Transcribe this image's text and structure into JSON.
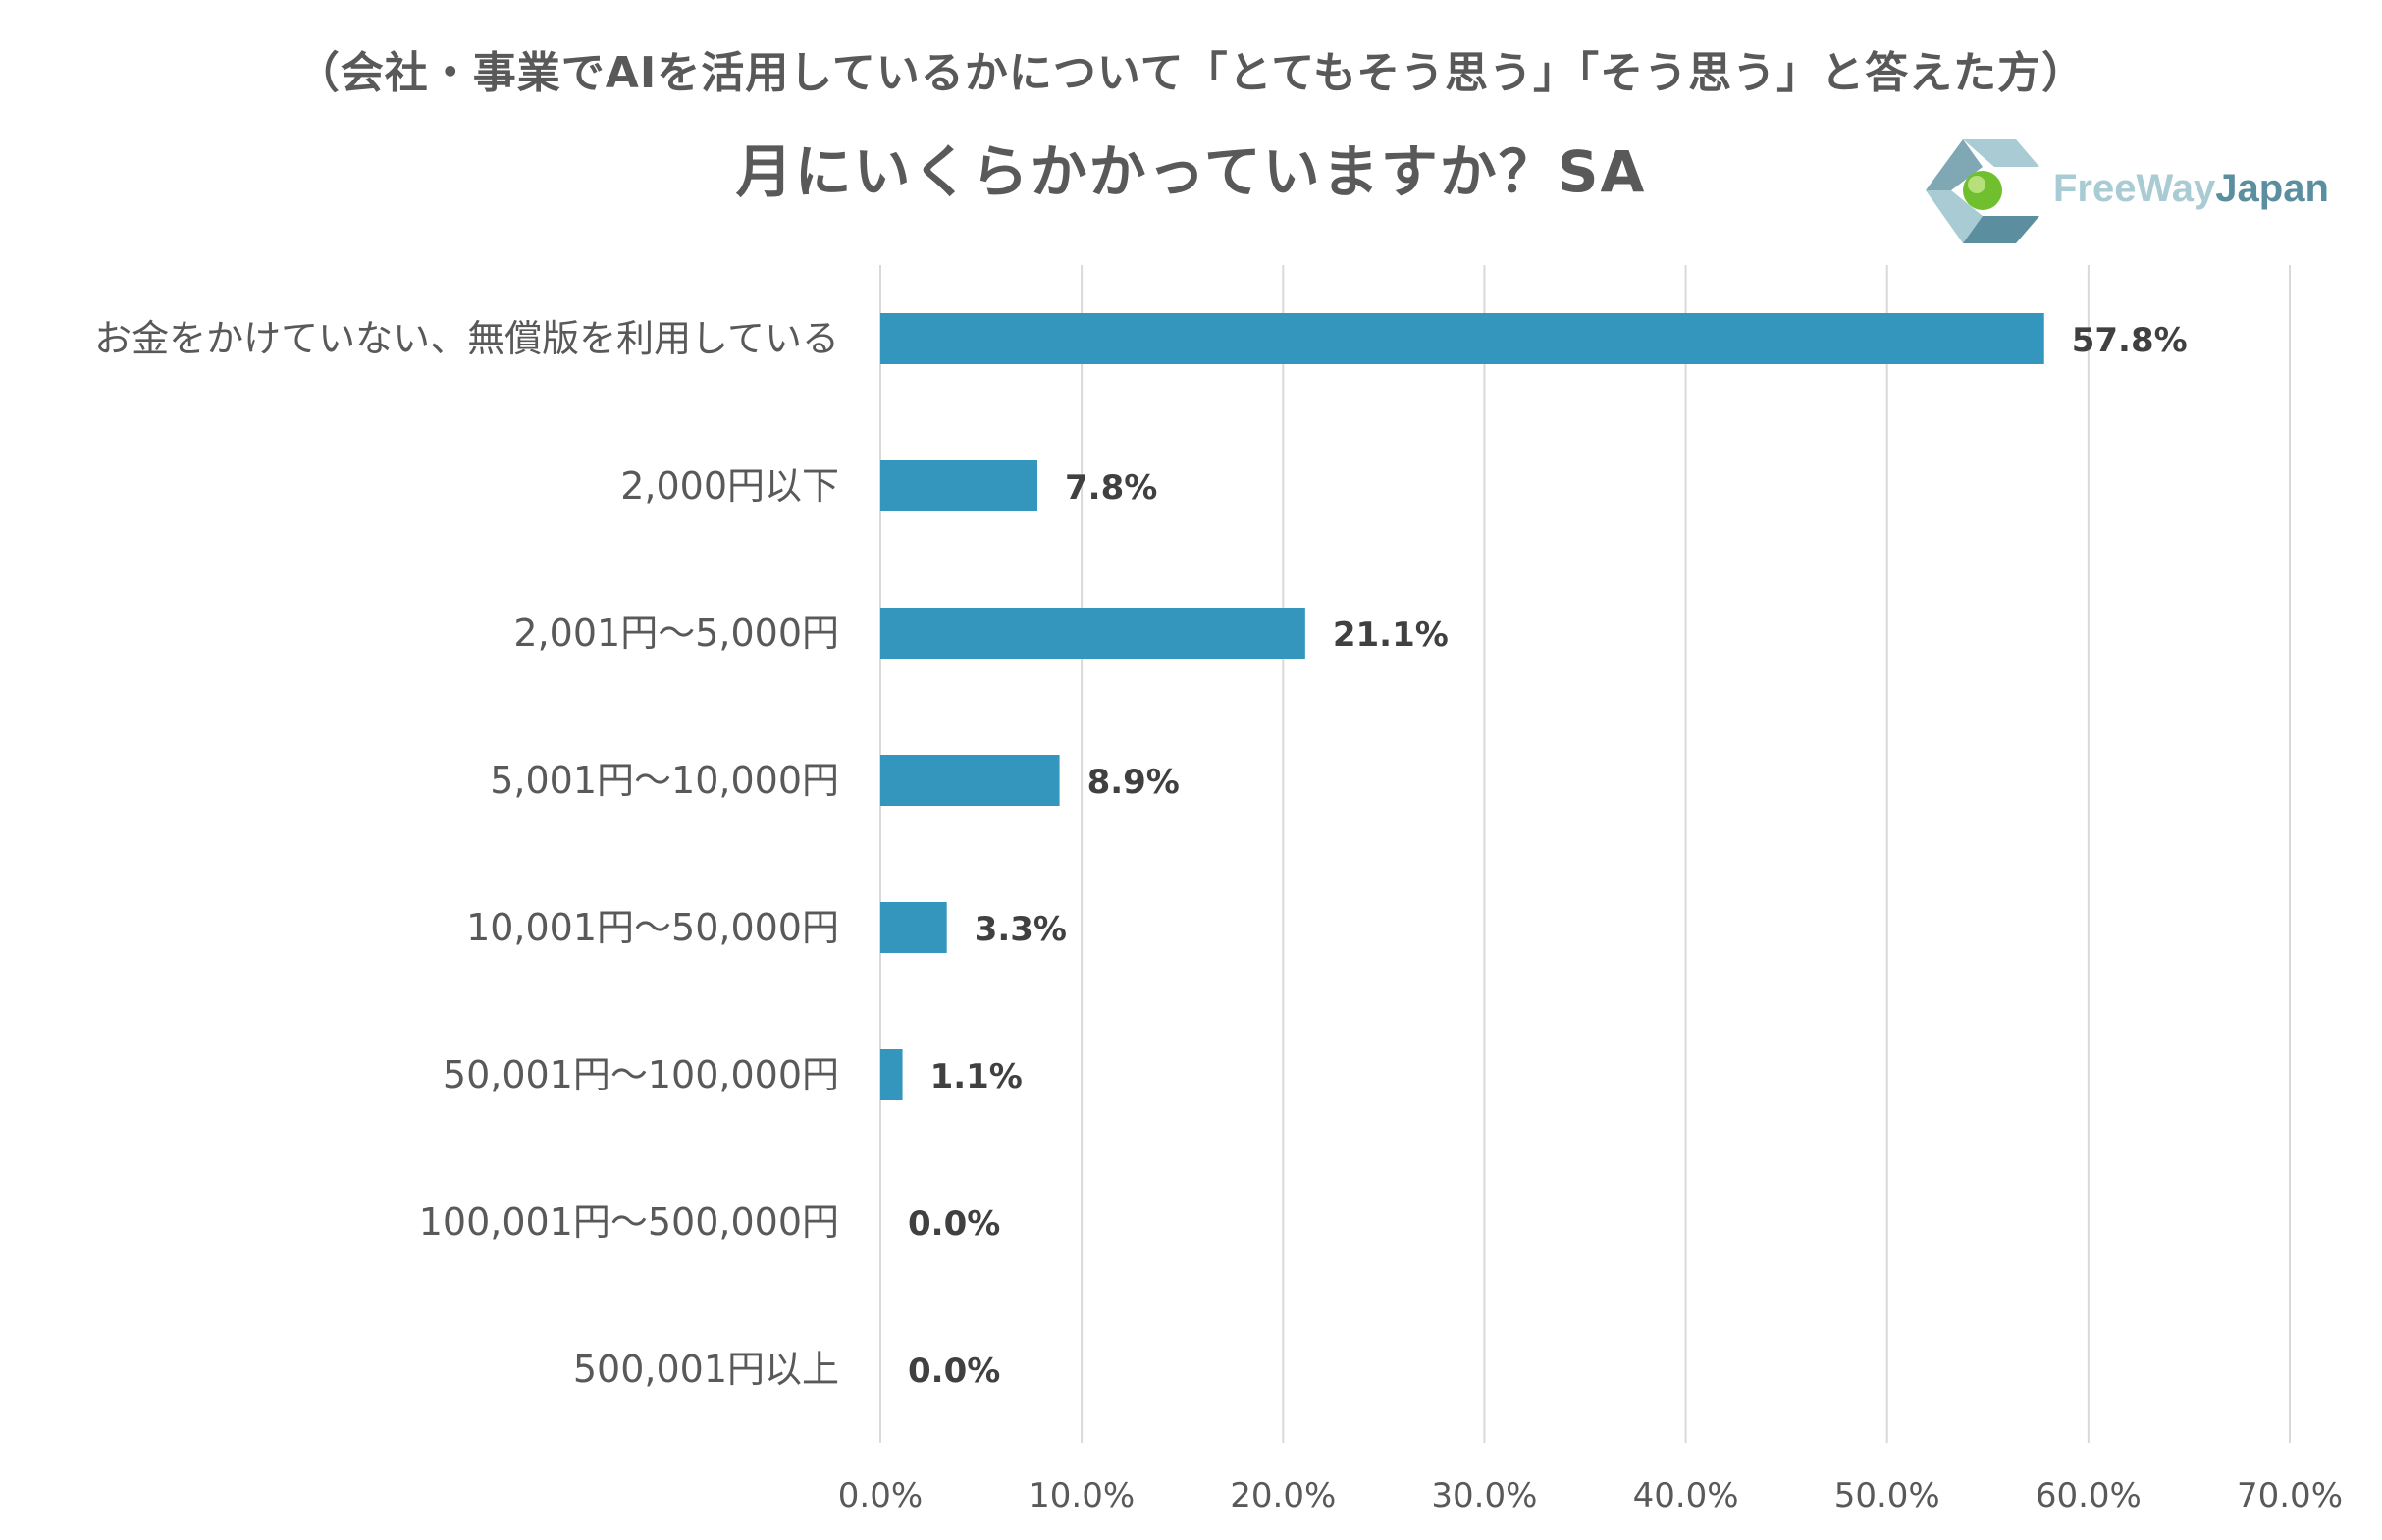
{
  "header": {
    "subtitle": "（会社・事業でAIを活用しているかについて「とてもそう思う」「そう思う」と答えた方）",
    "title": "月にいくらかかっていますか？SA"
  },
  "logo": {
    "text_light": "FreeWay",
    "text_dark": "Japan"
  },
  "chart_data": {
    "type": "bar",
    "orientation": "horizontal",
    "title": "月にいくらかかっていますか？SA",
    "subtitle": "（会社・事業でAIを活用しているかについて「とてもそう思う」「そう思う」と答えた方）",
    "categories": [
      "お金をかけていない、無償版を利用している",
      "2,000円以下",
      "2,001円～5,000円",
      "5,001円～10,000円",
      "10,001円～50,000円",
      "50,001円～100,000円",
      "100,001円～500,000円",
      "500,001円以上"
    ],
    "values": [
      57.8,
      7.8,
      21.1,
      8.9,
      3.3,
      1.1,
      0.0,
      0.0
    ],
    "value_labels": [
      "57.8%",
      "7.8%",
      "21.1%",
      "8.9%",
      "3.3%",
      "1.1%",
      "0.0%",
      "0.0%"
    ],
    "xlim": [
      0,
      70
    ],
    "xticks": [
      0,
      10,
      20,
      30,
      40,
      50,
      60,
      70
    ],
    "xtick_labels": [
      "0.0%",
      "10.0%",
      "20.0%",
      "30.0%",
      "40.0%",
      "50.0%",
      "60.0%",
      "70.0%"
    ],
    "grid": true,
    "legend": "none",
    "bar_color": "#3596bd",
    "grid_color": "#d9d9d9"
  }
}
